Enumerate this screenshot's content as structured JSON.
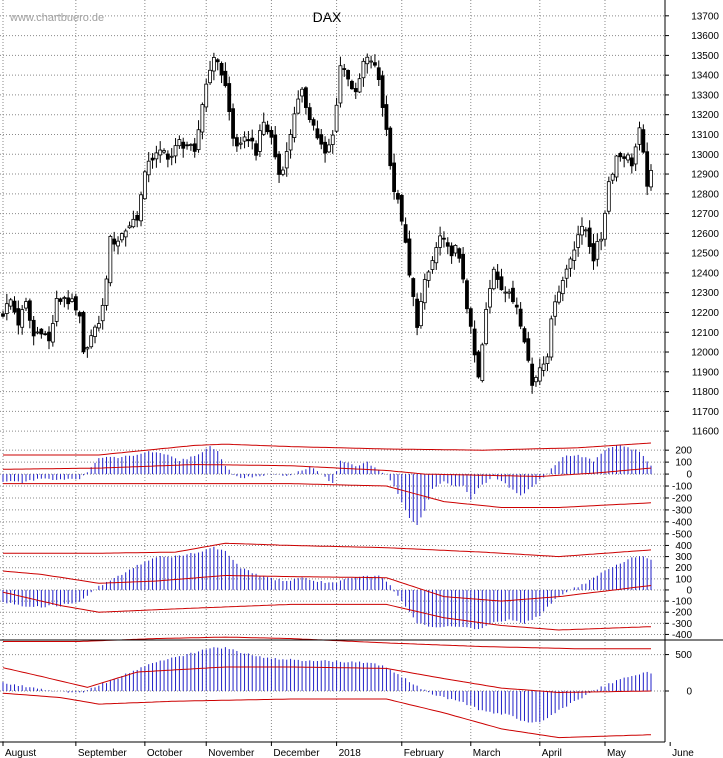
{
  "chart_data": {
    "type": "candlestick",
    "title": "DAX",
    "watermark": "www.chartbuero.de",
    "price_axis": {
      "ticks": [
        11600,
        11700,
        11800,
        11900,
        12000,
        12100,
        12200,
        12300,
        12400,
        12500,
        12600,
        12700,
        12800,
        12900,
        13000,
        13100,
        13200,
        13300,
        13400,
        13500,
        13600,
        13700
      ],
      "range": [
        11540,
        13780
      ]
    },
    "months": [
      "August",
      "September",
      "October",
      "November",
      "December",
      "2018",
      "February",
      "March",
      "April",
      "May",
      "June"
    ],
    "price_series": [
      [
        0,
        12200
      ],
      [
        2,
        12260
      ],
      [
        4,
        12150
      ],
      [
        6,
        12240
      ],
      [
        8,
        12080
      ],
      [
        10,
        12120
      ],
      [
        12,
        12050
      ],
      [
        14,
        12250
      ],
      [
        16,
        12280
      ],
      [
        18,
        12240
      ],
      [
        20,
        12160
      ],
      [
        21,
        11980
      ],
      [
        22,
        12050
      ],
      [
        24,
        12100
      ],
      [
        26,
        12220
      ],
      [
        28,
        12560
      ],
      [
        30,
        12570
      ],
      [
        32,
        12620
      ],
      [
        35,
        12690
      ],
      [
        38,
        12980
      ],
      [
        40,
        12990
      ],
      [
        42,
        13010
      ],
      [
        44,
        12990
      ],
      [
        46,
        13060
      ],
      [
        48,
        13050
      ],
      [
        50,
        12990
      ],
      [
        52,
        13260
      ],
      [
        54,
        13450
      ],
      [
        56,
        13480
      ],
      [
        58,
        13340
      ],
      [
        60,
        13080
      ],
      [
        62,
        13030
      ],
      [
        64,
        13090
      ],
      [
        66,
        13020
      ],
      [
        68,
        13160
      ],
      [
        70,
        13080
      ],
      [
        72,
        12900
      ],
      [
        74,
        13000
      ],
      [
        76,
        13220
      ],
      [
        78,
        13300
      ],
      [
        80,
        13200
      ],
      [
        82,
        13090
      ],
      [
        84,
        12990
      ],
      [
        86,
        13090
      ],
      [
        88,
        13450
      ],
      [
        90,
        13400
      ],
      [
        92,
        13290
      ],
      [
        94,
        13460
      ],
      [
        96,
        13480
      ],
      [
        98,
        13380
      ],
      [
        100,
        13120
      ],
      [
        102,
        12820
      ],
      [
        104,
        12680
      ],
      [
        106,
        12380
      ],
      [
        108,
        12150
      ],
      [
        110,
        12340
      ],
      [
        112,
        12460
      ],
      [
        114,
        12580
      ],
      [
        116,
        12510
      ],
      [
        118,
        12520
      ],
      [
        120,
        12380
      ],
      [
        122,
        12100
      ],
      [
        124,
        11860
      ],
      [
        126,
        12200
      ],
      [
        128,
        12430
      ],
      [
        130,
        12340
      ],
      [
        132,
        12280
      ],
      [
        134,
        12240
      ],
      [
        136,
        12080
      ],
      [
        138,
        11830
      ],
      [
        140,
        11930
      ],
      [
        142,
        12000
      ],
      [
        144,
        12280
      ],
      [
        146,
        12360
      ],
      [
        148,
        12480
      ],
      [
        150,
        12600
      ],
      [
        152,
        12620
      ],
      [
        154,
        12480
      ],
      [
        156,
        12580
      ],
      [
        158,
        12860
      ],
      [
        160,
        12990
      ],
      [
        162,
        13000
      ],
      [
        164,
        12960
      ],
      [
        166,
        13110
      ],
      [
        168,
        12860
      ],
      [
        169,
        12890
      ]
    ],
    "indicators": [
      {
        "name": "panel 1",
        "ticks": [
          200,
          100,
          0,
          -100,
          -200,
          -300,
          -400,
          -500
        ],
        "range": [
          -560,
          260
        ],
        "hist": [
          [
            0,
            -60
          ],
          [
            5,
            -70
          ],
          [
            10,
            -40
          ],
          [
            15,
            -50
          ],
          [
            20,
            -40
          ],
          [
            22,
            20
          ],
          [
            25,
            140
          ],
          [
            30,
            140
          ],
          [
            35,
            160
          ],
          [
            38,
            190
          ],
          [
            42,
            170
          ],
          [
            46,
            110
          ],
          [
            50,
            150
          ],
          [
            54,
            230
          ],
          [
            56,
            190
          ],
          [
            58,
            60
          ],
          [
            60,
            0
          ],
          [
            62,
            -30
          ],
          [
            66,
            -20
          ],
          [
            70,
            0
          ],
          [
            74,
            -20
          ],
          [
            78,
            30
          ],
          [
            80,
            60
          ],
          [
            83,
            0
          ],
          [
            86,
            -80
          ],
          [
            88,
            120
          ],
          [
            92,
            60
          ],
          [
            95,
            100
          ],
          [
            98,
            30
          ],
          [
            100,
            -10
          ],
          [
            102,
            -100
          ],
          [
            104,
            -230
          ],
          [
            106,
            -360
          ],
          [
            108,
            -430
          ],
          [
            110,
            -300
          ],
          [
            112,
            -120
          ],
          [
            115,
            -60
          ],
          [
            118,
            -110
          ],
          [
            120,
            -100
          ],
          [
            122,
            -210
          ],
          [
            124,
            -120
          ],
          [
            128,
            -20
          ],
          [
            130,
            -60
          ],
          [
            133,
            -130
          ],
          [
            135,
            -180
          ],
          [
            138,
            -110
          ],
          [
            140,
            -50
          ],
          [
            143,
            40
          ],
          [
            146,
            150
          ],
          [
            150,
            160
          ],
          [
            154,
            110
          ],
          [
            157,
            200
          ],
          [
            160,
            240
          ],
          [
            163,
            220
          ],
          [
            166,
            190
          ],
          [
            169,
            70
          ]
        ],
        "bands": [
          [
            [
              0,
              160
            ],
            [
              25,
              160
            ],
            [
              50,
              240
            ],
            [
              58,
              250
            ],
            [
              75,
              230
            ],
            [
              100,
              210
            ],
            [
              125,
              200
            ],
            [
              150,
              220
            ],
            [
              169,
              260
            ]
          ],
          [
            [
              0,
              40
            ],
            [
              25,
              50
            ],
            [
              50,
              80
            ],
            [
              75,
              70
            ],
            [
              100,
              30
            ],
            [
              110,
              0
            ],
            [
              125,
              -10
            ],
            [
              140,
              -20
            ],
            [
              155,
              10
            ],
            [
              169,
              50
            ]
          ],
          [
            [
              0,
              -80
            ],
            [
              25,
              -80
            ],
            [
              50,
              -80
            ],
            [
              75,
              -80
            ],
            [
              100,
              -100
            ],
            [
              115,
              -230
            ],
            [
              130,
              -280
            ],
            [
              145,
              -280
            ],
            [
              169,
              -240
            ]
          ]
        ]
      },
      {
        "name": "panel 2",
        "ticks": [
          400,
          300,
          200,
          100,
          0,
          -100,
          -200,
          -300,
          -400
        ],
        "range": [
          -450,
          440
        ],
        "hist": [
          [
            0,
            -110
          ],
          [
            5,
            -140
          ],
          [
            10,
            -150
          ],
          [
            15,
            -140
          ],
          [
            20,
            -100
          ],
          [
            25,
            30
          ],
          [
            30,
            120
          ],
          [
            35,
            220
          ],
          [
            40,
            300
          ],
          [
            45,
            300
          ],
          [
            50,
            330
          ],
          [
            55,
            380
          ],
          [
            58,
            350
          ],
          [
            62,
            200
          ],
          [
            66,
            140
          ],
          [
            70,
            100
          ],
          [
            74,
            80
          ],
          [
            78,
            110
          ],
          [
            82,
            80
          ],
          [
            86,
            60
          ],
          [
            90,
            100
          ],
          [
            94,
            120
          ],
          [
            98,
            130
          ],
          [
            100,
            80
          ],
          [
            104,
            -100
          ],
          [
            108,
            -300
          ],
          [
            112,
            -330
          ],
          [
            116,
            -330
          ],
          [
            120,
            -340
          ],
          [
            124,
            -350
          ],
          [
            128,
            -290
          ],
          [
            132,
            -270
          ],
          [
            136,
            -300
          ],
          [
            140,
            -230
          ],
          [
            144,
            -80
          ],
          [
            148,
            0
          ],
          [
            152,
            60
          ],
          [
            156,
            150
          ],
          [
            160,
            220
          ],
          [
            164,
            290
          ],
          [
            167,
            300
          ],
          [
            169,
            270
          ]
        ],
        "bands": [
          [
            [
              0,
              330
            ],
            [
              25,
              330
            ],
            [
              45,
              340
            ],
            [
              58,
              420
            ],
            [
              75,
              400
            ],
            [
              100,
              380
            ],
            [
              125,
              340
            ],
            [
              145,
              300
            ],
            [
              169,
              360
            ]
          ],
          [
            [
              0,
              170
            ],
            [
              10,
              140
            ],
            [
              25,
              60
            ],
            [
              40,
              80
            ],
            [
              58,
              130
            ],
            [
              75,
              120
            ],
            [
              100,
              110
            ],
            [
              115,
              -60
            ],
            [
              130,
              -100
            ],
            [
              145,
              -60
            ],
            [
              169,
              40
            ]
          ],
          [
            [
              0,
              -20
            ],
            [
              15,
              -140
            ],
            [
              25,
              -200
            ],
            [
              45,
              -170
            ],
            [
              75,
              -130
            ],
            [
              100,
              -130
            ],
            [
              115,
              -250
            ],
            [
              130,
              -320
            ],
            [
              145,
              -360
            ],
            [
              169,
              -330
            ]
          ]
        ]
      },
      {
        "name": "panel 3",
        "ticks": [
          500,
          0
        ],
        "range": [
          -700,
          700
        ],
        "hist": [
          [
            0,
            110
          ],
          [
            5,
            70
          ],
          [
            10,
            20
          ],
          [
            15,
            -10
          ],
          [
            20,
            -30
          ],
          [
            25,
            80
          ],
          [
            30,
            180
          ],
          [
            35,
            300
          ],
          [
            40,
            400
          ],
          [
            45,
            460
          ],
          [
            50,
            530
          ],
          [
            55,
            600
          ],
          [
            58,
            590
          ],
          [
            62,
            530
          ],
          [
            66,
            480
          ],
          [
            70,
            450
          ],
          [
            74,
            430
          ],
          [
            78,
            420
          ],
          [
            82,
            420
          ],
          [
            86,
            410
          ],
          [
            90,
            400
          ],
          [
            94,
            390
          ],
          [
            98,
            360
          ],
          [
            100,
            330
          ],
          [
            104,
            200
          ],
          [
            108,
            60
          ],
          [
            112,
            -40
          ],
          [
            116,
            -100
          ],
          [
            120,
            -160
          ],
          [
            124,
            -250
          ],
          [
            128,
            -300
          ],
          [
            132,
            -330
          ],
          [
            136,
            -420
          ],
          [
            140,
            -420
          ],
          [
            144,
            -300
          ],
          [
            148,
            -170
          ],
          [
            152,
            -60
          ],
          [
            156,
            50
          ],
          [
            160,
            140
          ],
          [
            164,
            210
          ],
          [
            167,
            250
          ],
          [
            169,
            250
          ]
        ],
        "bands": [
          [
            [
              0,
              680
            ],
            [
              20,
              680
            ],
            [
              40,
              720
            ],
            [
              58,
              740
            ],
            [
              75,
              720
            ],
            [
              100,
              660
            ],
            [
              125,
              610
            ],
            [
              150,
              580
            ],
            [
              169,
              580
            ]
          ],
          [
            [
              0,
              320
            ],
            [
              10,
              200
            ],
            [
              22,
              50
            ],
            [
              35,
              260
            ],
            [
              58,
              330
            ],
            [
              75,
              330
            ],
            [
              100,
              310
            ],
            [
              115,
              170
            ],
            [
              130,
              40
            ],
            [
              145,
              -20
            ],
            [
              169,
              0
            ]
          ],
          [
            [
              0,
              -30
            ],
            [
              15,
              -90
            ],
            [
              25,
              -180
            ],
            [
              45,
              -140
            ],
            [
              75,
              -110
            ],
            [
              100,
              -110
            ],
            [
              115,
              -300
            ],
            [
              130,
              -520
            ],
            [
              145,
              -640
            ],
            [
              169,
              -600
            ]
          ]
        ]
      }
    ],
    "colors": {
      "candle": "#000000",
      "histogram": "#2020c8",
      "band": "#cc0000",
      "grid": "#8a8a8a",
      "separator": "#000000"
    }
  }
}
